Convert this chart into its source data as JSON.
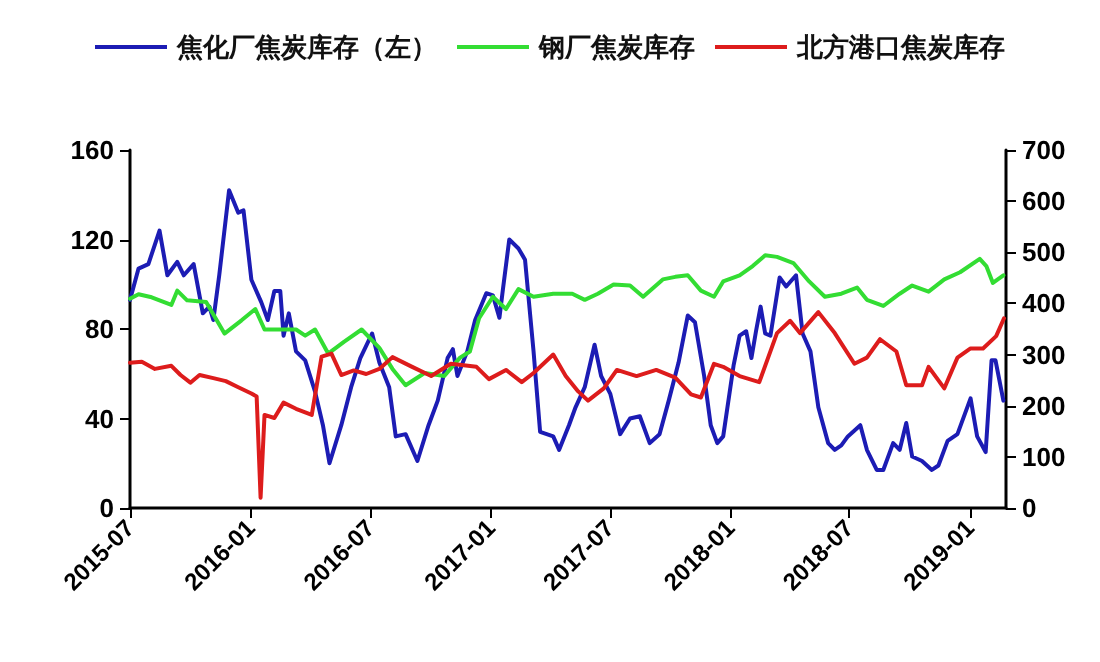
{
  "chart_data": {
    "type": "line",
    "xlim": [
      "2015-07-01",
      "2019-02-25"
    ],
    "xticks": [
      {
        "value": "2015-07-01",
        "label": "2015-07"
      },
      {
        "value": "2016-01-01",
        "label": "2016-01"
      },
      {
        "value": "2016-07-01",
        "label": "2016-07"
      },
      {
        "value": "2017-01-01",
        "label": "2017-01"
      },
      {
        "value": "2017-07-01",
        "label": "2017-07"
      },
      {
        "value": "2018-01-01",
        "label": "2018-01"
      },
      {
        "value": "2018-07-01",
        "label": "2018-07"
      },
      {
        "value": "2019-01-01",
        "label": "2019-01"
      }
    ],
    "ylim": [
      0,
      160
    ],
    "yticks": [
      0,
      40,
      80,
      120,
      160
    ],
    "y2lim": [
      0,
      700
    ],
    "y2ticks": [
      0,
      100,
      200,
      300,
      400,
      500,
      600,
      700
    ],
    "grid": false,
    "legend": "top",
    "marker": "none",
    "line_style": "solid",
    "series": [
      {
        "name": "焦化厂焦炭库存（左）",
        "color": "#1c1cb4",
        "x": [
          "2015-07-01",
          "2015-07-14",
          "2015-07-29",
          "2015-08-15",
          "2015-08-27",
          "2015-09-11",
          "2015-09-21",
          "2015-10-06",
          "2015-10-20",
          "2015-10-30",
          "2015-11-05",
          "2015-11-14",
          "2015-11-29",
          "2015-12-13",
          "2015-12-21",
          "2016-01-02",
          "2016-01-17",
          "2016-01-27",
          "2016-02-06",
          "2016-02-15",
          "2016-02-20",
          "2016-02-28",
          "2016-03-10",
          "2016-03-24",
          "2016-04-08",
          "2016-04-20",
          "2016-04-30",
          "2016-05-18",
          "2016-06-02",
          "2016-06-16",
          "2016-07-04",
          "2016-07-15",
          "2016-07-30",
          "2016-08-09",
          "2016-08-24",
          "2016-09-11",
          "2016-09-28",
          "2016-10-12",
          "2016-10-27",
          "2016-11-04",
          "2016-11-11",
          "2016-11-26",
          "2016-12-08",
          "2016-12-25",
          "2017-01-04",
          "2017-01-14",
          "2017-01-19",
          "2017-01-29",
          "2017-02-12",
          "2017-02-22",
          "2017-03-07",
          "2017-03-17",
          "2017-04-06",
          "2017-04-15",
          "2017-04-30",
          "2017-05-10",
          "2017-05-24",
          "2017-06-08",
          "2017-06-18",
          "2017-07-02",
          "2017-07-17",
          "2017-08-01",
          "2017-08-16",
          "2017-08-31",
          "2017-09-15",
          "2017-09-29",
          "2017-10-14",
          "2017-10-28",
          "2017-11-08",
          "2017-11-22",
          "2017-12-02",
          "2017-12-12",
          "2017-12-21",
          "2018-01-06",
          "2018-01-15",
          "2018-01-25",
          "2018-02-02",
          "2018-02-09",
          "2018-02-16",
          "2018-02-23",
          "2018-03-03",
          "2018-03-17",
          "2018-03-27",
          "2018-04-11",
          "2018-04-21",
          "2018-05-03",
          "2018-05-15",
          "2018-05-30",
          "2018-06-09",
          "2018-06-19",
          "2018-06-29",
          "2018-07-18",
          "2018-07-28",
          "2018-08-12",
          "2018-08-22",
          "2018-09-06",
          "2018-09-16",
          "2018-09-26",
          "2018-10-05",
          "2018-10-20",
          "2018-11-04",
          "2018-11-14",
          "2018-11-28",
          "2018-12-13",
          "2019-01-02",
          "2019-01-12",
          "2019-01-25",
          "2019-02-03",
          "2019-02-09",
          "2019-02-21"
        ],
        "values": [
          93,
          107,
          109,
          124,
          104,
          110,
          104,
          109,
          87,
          90,
          84,
          104,
          142,
          132,
          133,
          102,
          92,
          84,
          97,
          97,
          77,
          87,
          70,
          66,
          52,
          37,
          20,
          37,
          54,
          67,
          78,
          65,
          54,
          32,
          33,
          21,
          37,
          48,
          67,
          71,
          59,
          70,
          84,
          96,
          95,
          85,
          97,
          120,
          116,
          111,
          70,
          34,
          32,
          26,
          37,
          45,
          54,
          73,
          59,
          51,
          33,
          40,
          41,
          29,
          33,
          48,
          65,
          86,
          83,
          59,
          37,
          29,
          32,
          64,
          77,
          79,
          67,
          79,
          90,
          78,
          77,
          103,
          99,
          104,
          78,
          70,
          45,
          29,
          26,
          28,
          32,
          37,
          26,
          17,
          17,
          29,
          26,
          38,
          23,
          21,
          17,
          19,
          30,
          33,
          49,
          32,
          25,
          66,
          66,
          48
        ]
      },
      {
        "name": "钢厂焦炭库存",
        "color": "#33dd33",
        "axis": "y2",
        "x": [
          "2015-07-01",
          "2015-07-14",
          "2015-08-03",
          "2015-09-02",
          "2015-09-11",
          "2015-09-26",
          "2015-10-25",
          "2015-11-22",
          "2015-12-18",
          "2016-01-08",
          "2016-01-22",
          "2016-02-15",
          "2016-03-10",
          "2016-03-24",
          "2016-04-08",
          "2016-04-28",
          "2016-05-22",
          "2016-06-18",
          "2016-07-15",
          "2016-08-04",
          "2016-08-24",
          "2016-09-22",
          "2016-10-22",
          "2016-11-15",
          "2016-11-30",
          "2016-12-14",
          "2017-01-04",
          "2017-01-24",
          "2017-02-12",
          "2017-03-07",
          "2017-04-06",
          "2017-05-05",
          "2017-05-24",
          "2017-06-13",
          "2017-07-07",
          "2017-08-01",
          "2017-08-21",
          "2017-09-20",
          "2017-10-09",
          "2017-10-28",
          "2017-11-17",
          "2017-12-07",
          "2017-12-21",
          "2018-01-15",
          "2018-02-04",
          "2018-02-23",
          "2018-03-13",
          "2018-04-07",
          "2018-05-01",
          "2018-05-25",
          "2018-06-19",
          "2018-07-13",
          "2018-07-28",
          "2018-08-22",
          "2018-09-16",
          "2018-10-05",
          "2018-10-30",
          "2018-11-23",
          "2018-12-17",
          "2019-01-16",
          "2019-01-26",
          "2019-02-05",
          "2019-02-21"
        ],
        "values": [
          409,
          418,
          412,
          397,
          425,
          406,
          403,
          341,
          367,
          389,
          349,
          349,
          349,
          337,
          349,
          302,
          325,
          349,
          313,
          272,
          240,
          264,
          258,
          294,
          306,
          371,
          413,
          389,
          428,
          413,
          419,
          419,
          407,
          419,
          437,
          435,
          413,
          447,
          452,
          455,
          425,
          413,
          443,
          455,
          473,
          494,
          491,
          479,
          443,
          413,
          419,
          431,
          407,
          395,
          419,
          435,
          423,
          447,
          461,
          487,
          473,
          440,
          455
        ]
      },
      {
        "name": "北方港口焦炭库存",
        "color": "#dd1c1c",
        "axis": "y2",
        "x": [
          "2015-07-01",
          "2015-07-19",
          "2015-08-08",
          "2015-09-02",
          "2015-09-16",
          "2015-10-01",
          "2015-10-15",
          "2015-11-05",
          "2015-11-24",
          "2015-12-13",
          "2016-01-02",
          "2016-01-10",
          "2016-01-16",
          "2016-01-22",
          "2016-02-06",
          "2016-02-20",
          "2016-03-10",
          "2016-04-03",
          "2016-04-18",
          "2016-05-03",
          "2016-05-18",
          "2016-06-06",
          "2016-06-25",
          "2016-07-15",
          "2016-08-04",
          "2016-09-03",
          "2016-10-02",
          "2016-11-01",
          "2016-12-10",
          "2016-12-29",
          "2017-01-24",
          "2017-02-17",
          "2017-03-07",
          "2017-04-06",
          "2017-04-25",
          "2017-05-14",
          "2017-05-29",
          "2017-06-22",
          "2017-07-12",
          "2017-08-11",
          "2017-09-10",
          "2017-10-09",
          "2017-11-02",
          "2017-11-17",
          "2017-12-07",
          "2017-12-21",
          "2018-01-15",
          "2018-02-14",
          "2018-03-13",
          "2018-04-02",
          "2018-04-17",
          "2018-05-15",
          "2018-06-09",
          "2018-07-09",
          "2018-07-28",
          "2018-08-17",
          "2018-09-11",
          "2018-09-26",
          "2018-10-20",
          "2018-10-30",
          "2018-11-23",
          "2018-12-13",
          "2019-01-02",
          "2019-01-21",
          "2019-02-10",
          "2019-02-22"
        ],
        "values": [
          284,
          286,
          272,
          278,
          260,
          245,
          260,
          254,
          248,
          236,
          224,
          218,
          20,
          182,
          176,
          206,
          194,
          182,
          296,
          302,
          260,
          269,
          262,
          272,
          295,
          276,
          258,
          282,
          276,
          252,
          270,
          246,
          264,
          300,
          258,
          228,
          210,
          234,
          270,
          258,
          270,
          255,
          222,
          216,
          282,
          276,
          258,
          246,
          342,
          366,
          342,
          383,
          342,
          282,
          294,
          330,
          306,
          240,
          240,
          276,
          234,
          294,
          312,
          312,
          336,
          371
        ]
      }
    ]
  }
}
